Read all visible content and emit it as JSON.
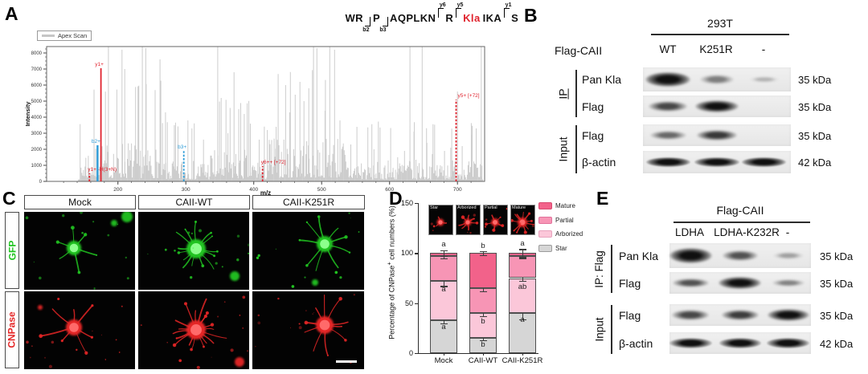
{
  "panels": {
    "a": {
      "label": "A"
    },
    "b": {
      "label": "B"
    },
    "c": {
      "label": "C"
    },
    "d": {
      "label": "D"
    },
    "e": {
      "label": "E"
    }
  },
  "colors": {
    "y_ion": "#e0232e",
    "b_ion": "#2b9bd7",
    "kla_red": "#e0232e",
    "gfp_green": "#21c421",
    "cnpase_red": "#e52626"
  },
  "panel_a": {
    "legend": "Apex Scan",
    "xlabel": "m/z",
    "ylabel": "Intensity",
    "peptide": {
      "segments": [
        {
          "t": "WR"
        },
        {
          "m": "b2",
          "k": "b"
        },
        {
          "t": "P"
        },
        {
          "m": "b3",
          "k": "b"
        },
        {
          "t": "AQPLKN"
        },
        {
          "m": "y6",
          "k": "y"
        },
        {
          "t": "R"
        },
        {
          "m": "y5",
          "k": "y"
        },
        {
          "t": "Kla",
          "red": true
        },
        {
          "t": "IKA"
        },
        {
          "m": "y1",
          "k": "y"
        },
        {
          "t": "S"
        }
      ]
    }
  },
  "chart_data": [
    {
      "type": "bar",
      "subtype": "mass-spectrum",
      "series_label": "Apex Scan",
      "xlabel": "m/z",
      "ylabel": "Intensity",
      "xlim": [
        95,
        740
      ],
      "ylim": [
        0,
        8400
      ],
      "xticks": [
        200,
        300,
        400,
        500,
        600,
        700
      ],
      "yticks": [
        0,
        1000,
        2000,
        3000,
        4000,
        5000,
        6000,
        7000,
        8000
      ],
      "annotated_peaks": [
        {
          "label": "y1+ -H(3+N)",
          "mz": 158,
          "intensity": 500,
          "ion": "y",
          "style": "dashed"
        },
        {
          "label": "b2+",
          "mz": 170,
          "intensity": 2250,
          "ion": "b",
          "style": "solid"
        },
        {
          "label": "y1+",
          "mz": 175,
          "intensity": 7050,
          "ion": "y",
          "style": "solid"
        },
        {
          "label": "b3+",
          "mz": 297,
          "intensity": 1900,
          "ion": "b",
          "style": "dashed"
        },
        {
          "label": "y6++ [+72]",
          "mz": 413,
          "intensity": 950,
          "ion": "y",
          "style": "dashed"
        },
        {
          "label": "y5+ [+72]",
          "mz": 698,
          "intensity": 5100,
          "ion": "y",
          "style": "dashed"
        }
      ]
    },
    {
      "type": "bar",
      "stacked": true,
      "categories": [
        "Mock",
        "CAII-WT",
        "CAII-K251R"
      ],
      "series": [
        {
          "name": "Star",
          "color": "#d6d6d6",
          "border": "#9c9c9c",
          "values": [
            33,
            15,
            40
          ],
          "errors": [
            3,
            2,
            6
          ],
          "sig": [
            "a",
            "b",
            "a"
          ]
        },
        {
          "name": "Arborized",
          "color": "#fbc7d9",
          "border": "#e8a3bd",
          "values": [
            39,
            25,
            35
          ],
          "errors": [
            5,
            3,
            3
          ],
          "sig": [
            "a",
            "b",
            "ab"
          ]
        },
        {
          "name": "Partial",
          "color": "#f795b5",
          "border": "#e2729b",
          "values": [
            25,
            25,
            22
          ],
          "errors": [
            2,
            3,
            2
          ],
          "sig": [
            "",
            "",
            ""
          ]
        },
        {
          "name": "Mature",
          "color": "#f2628a",
          "border": "#d9486e",
          "values": [
            3,
            35,
            3
          ],
          "errors": [
            3,
            2,
            4
          ],
          "sig": [
            "",
            "",
            ""
          ]
        }
      ],
      "totals_sig": [
        "a",
        "b",
        "a"
      ],
      "ylabel": "Percentage of CNPase+ cell numbers (%)",
      "ylim": [
        0,
        150
      ],
      "yticks": [
        0,
        50,
        100,
        150
      ],
      "legend_order": [
        "Mature",
        "Partial",
        "Arborized",
        "Star"
      ],
      "legend_position": "top-right"
    }
  ],
  "panel_b": {
    "cell_line": "293T",
    "construct": "Flag-CAII",
    "lanes": [
      "WT",
      "K251R",
      "-"
    ],
    "group_labels": [
      "IP",
      "Input"
    ],
    "rows": [
      {
        "antibody": "Pan Kla",
        "kda": "35 kDa",
        "bands": [
          0.97,
          0.3,
          0.05
        ]
      },
      {
        "antibody": "Flag",
        "kda": "35 kDa",
        "bands": [
          0.55,
          0.85,
          0.02
        ]
      },
      {
        "antibody": "Flag",
        "kda": "35 kDa",
        "bands": [
          0.4,
          0.62,
          0.02
        ]
      },
      {
        "antibody": "β-actin",
        "kda": "42 kDa",
        "bands": [
          0.97,
          0.9,
          0.95
        ]
      }
    ]
  },
  "panel_e": {
    "construct": "Flag-CAII",
    "lanes": [
      "LDHA",
      "LDHA-K232R",
      "-"
    ],
    "group_labels": [
      "IP: Flag",
      "Input"
    ],
    "rows": [
      {
        "antibody": "Pan Kla",
        "kda": "35 kDa",
        "bands": [
          0.95,
          0.5,
          0.14
        ]
      },
      {
        "antibody": "Flag",
        "kda": "35 kDa",
        "bands": [
          0.5,
          0.92,
          0.28
        ]
      },
      {
        "antibody": "Flag",
        "kda": "35 kDa",
        "bands": [
          0.55,
          0.6,
          0.85
        ]
      },
      {
        "antibody": "β-actin",
        "kda": "42 kDa",
        "bands": [
          0.8,
          0.85,
          0.85
        ]
      }
    ]
  },
  "panel_c": {
    "columns": [
      "Mock",
      "CAII-WT",
      "CAII-K251R"
    ],
    "row_labels": [
      "GFP",
      "CNPase"
    ]
  },
  "panel_d": {
    "ylabel_parts": [
      "Percentage of CNPase",
      "+",
      " cell numbers (%)"
    ],
    "insets": [
      "Star",
      "Arborized",
      "Partial",
      "Mature"
    ]
  }
}
